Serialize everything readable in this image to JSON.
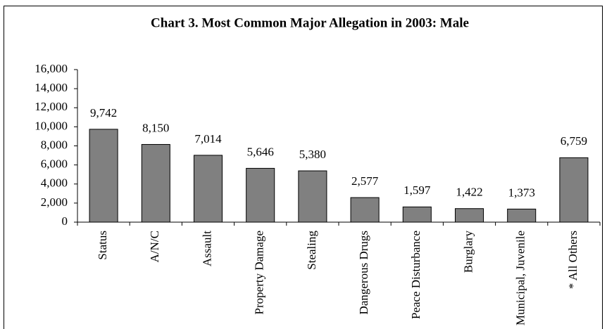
{
  "chart_data": {
    "type": "bar",
    "title": "Chart 3.  Most Common Major Allegation in 2003:  Male",
    "categories": [
      "Status",
      "A/N/C",
      "Assault",
      "Property Damage",
      "Stealing",
      "Dangerous Drugs",
      "Peace Disturbance",
      "Burglary",
      "Municipal, Juvenile",
      "* All Others"
    ],
    "values": [
      9742,
      8150,
      7014,
      5646,
      5380,
      2577,
      1597,
      1422,
      1373,
      6759
    ],
    "value_labels": [
      "9,742",
      "8,150",
      "7,014",
      "5,646",
      "5,380",
      "2,577",
      "1,597",
      "1,422",
      "1,373",
      "6,759"
    ],
    "color": "#808080",
    "ylim": [
      0,
      16000
    ],
    "yticks": [
      0,
      {
        "value": 2000,
        "label": "2,000"
      },
      {
        "value": 4000,
        "label": "4,000"
      },
      {
        "value": 6000,
        "label": "6,000"
      },
      {
        "value": 8000,
        "label": "8,000"
      },
      {
        "value": 10000,
        "label": "10,000"
      },
      {
        "value": 12000,
        "label": "12,000"
      },
      {
        "value": 14000,
        "label": "14,000"
      },
      {
        "value": 16000,
        "label": "16,000"
      }
    ],
    "grid": false
  }
}
